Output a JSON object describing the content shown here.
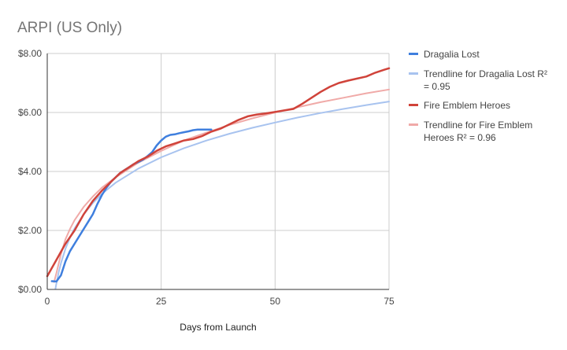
{
  "chart_data": {
    "type": "line",
    "title": "ARPI (US Only)",
    "xlabel": "Days from Launch",
    "ylabel": "",
    "xlim": [
      0,
      75
    ],
    "ylim": [
      0,
      8
    ],
    "x_ticks": [
      0,
      25,
      50,
      75
    ],
    "y_ticks": [
      0,
      2,
      4,
      6,
      8
    ],
    "y_tick_labels": [
      "$0.00",
      "$2.00",
      "$4.00",
      "$6.00",
      "$8.00"
    ],
    "grid": true,
    "legend_position": "right",
    "series": [
      {
        "name": "Dragalia Lost",
        "color": "#3f7fde",
        "kind": "data",
        "x": [
          1,
          2,
          3,
          4,
          5,
          6,
          7,
          8,
          9,
          10,
          11,
          12,
          13,
          14,
          15,
          16,
          17,
          18,
          19,
          20,
          21,
          22,
          23,
          24,
          25,
          26,
          27,
          28,
          29,
          30,
          31,
          32,
          33,
          34,
          35,
          36
        ],
        "y": [
          0.28,
          0.27,
          0.48,
          0.95,
          1.3,
          1.55,
          1.8,
          2.05,
          2.3,
          2.55,
          2.9,
          3.2,
          3.45,
          3.65,
          3.8,
          3.95,
          4.05,
          4.15,
          4.25,
          4.32,
          4.4,
          4.52,
          4.65,
          4.88,
          5.05,
          5.18,
          5.24,
          5.26,
          5.3,
          5.33,
          5.36,
          5.4,
          5.42,
          5.42,
          5.42,
          5.42
        ]
      },
      {
        "name": "Trendline for Dragalia Lost R² = 0.95",
        "color": "#a8c3ef",
        "kind": "trend",
        "x": [
          1.8,
          2,
          2.5,
          3,
          4,
          5,
          6,
          8,
          10,
          12,
          15,
          20,
          25,
          30,
          35,
          40,
          45,
          50,
          55,
          60,
          65,
          70,
          75
        ],
        "y": [
          0.02,
          0.2,
          0.58,
          0.89,
          1.38,
          1.76,
          2.07,
          2.55,
          2.93,
          3.24,
          3.62,
          4.1,
          4.48,
          4.79,
          5.05,
          5.28,
          5.48,
          5.66,
          5.83,
          5.98,
          6.12,
          6.25,
          6.37
        ]
      },
      {
        "name": "Fire Emblem Heroes",
        "color": "#d0433a",
        "kind": "data",
        "x": [
          0,
          2,
          4,
          6,
          8,
          10,
          12,
          14,
          16,
          18,
          20,
          22,
          24,
          26,
          28,
          30,
          32,
          34,
          36,
          38,
          40,
          42,
          44,
          46,
          48,
          50,
          52,
          54,
          56,
          58,
          60,
          62,
          64,
          66,
          68,
          70,
          72,
          74,
          75
        ],
        "y": [
          0.45,
          1.0,
          1.55,
          2.0,
          2.55,
          3.0,
          3.35,
          3.65,
          3.95,
          4.15,
          4.35,
          4.5,
          4.7,
          4.85,
          4.95,
          5.05,
          5.1,
          5.2,
          5.35,
          5.45,
          5.6,
          5.75,
          5.87,
          5.93,
          5.97,
          6.02,
          6.07,
          6.12,
          6.3,
          6.5,
          6.7,
          6.87,
          7.0,
          7.08,
          7.15,
          7.22,
          7.35,
          7.45,
          7.5
        ]
      },
      {
        "name": "Trendline for Fire Emblem Heroes R² = 0.96",
        "color": "#f0aaa8",
        "kind": "trend",
        "x": [
          1.5,
          2,
          3,
          4,
          5,
          6,
          8,
          10,
          12,
          15,
          20,
          25,
          30,
          35,
          40,
          45,
          50,
          55,
          60,
          65,
          70,
          75
        ],
        "y": [
          0.25,
          0.55,
          1.2,
          1.7,
          2.05,
          2.35,
          2.8,
          3.15,
          3.45,
          3.8,
          4.3,
          4.7,
          5.05,
          5.32,
          5.58,
          5.8,
          6.0,
          6.18,
          6.35,
          6.5,
          6.65,
          6.78
        ]
      }
    ]
  }
}
